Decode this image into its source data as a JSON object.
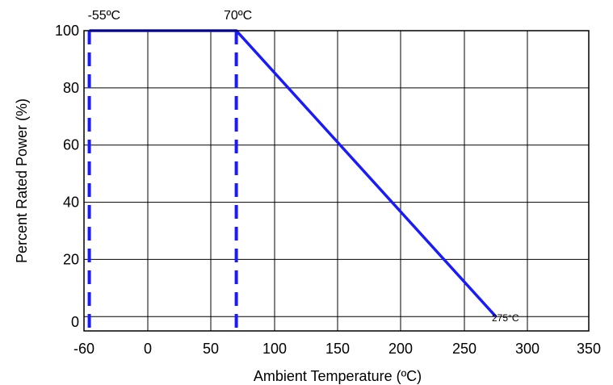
{
  "chart_data": {
    "type": "line",
    "title": "",
    "xlabel": "Ambient Temperature (ºC)",
    "ylabel": "Percent Rated Power (%)",
    "xlim": [
      -60,
      350
    ],
    "ylim": [
      -5,
      100
    ],
    "x_ticks": [
      -60,
      0,
      50,
      100,
      150,
      200,
      250,
      300,
      350
    ],
    "x_tick_labels": [
      "-60",
      "0",
      "50",
      "100",
      "150",
      "200",
      "250",
      "300",
      "350"
    ],
    "y_ticks": [
      0,
      20,
      40,
      60,
      80,
      100
    ],
    "y_tick_labels": [
      "0",
      "20",
      "40",
      "60",
      "80",
      "100"
    ],
    "grid": true,
    "line_color": "#1a1aff",
    "series": [
      {
        "x": [
          -55,
          70,
          275
        ],
        "y": [
          100,
          100,
          0
        ]
      }
    ],
    "vlines": [
      {
        "x": -55,
        "style": "dashed"
      },
      {
        "x": 70,
        "style": "dashed"
      }
    ],
    "annotations": [
      {
        "text": "-55ºC",
        "x": -55
      },
      {
        "text": "70ºC",
        "x": 70
      },
      {
        "text": "275°C",
        "x": 275
      }
    ]
  }
}
